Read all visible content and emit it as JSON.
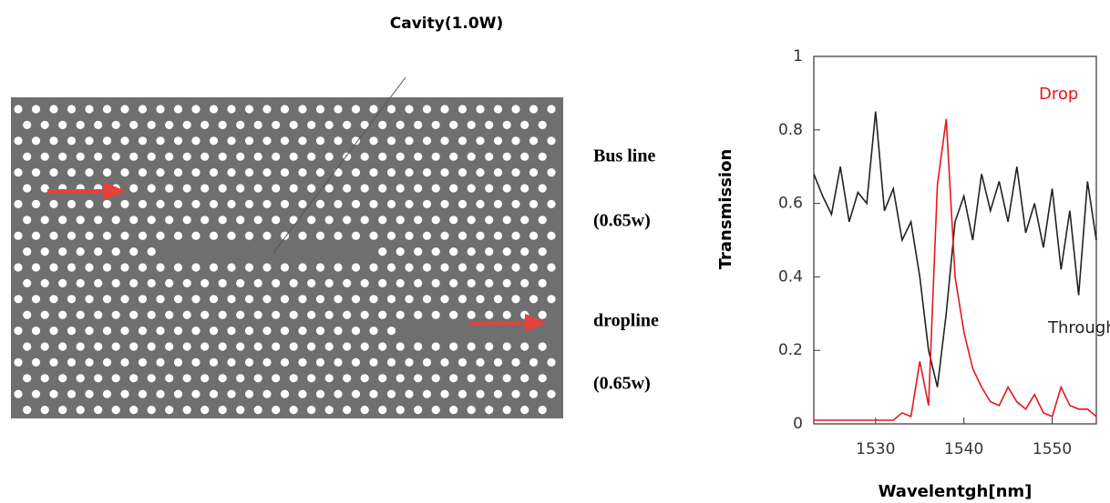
{
  "diagram": {
    "cavity_label": "Cavity(1.0W)",
    "bus_label": "Bus line",
    "bus_width": "(0.65w)",
    "drop_label": "dropline",
    "drop_width": "(0.65w)"
  },
  "chart_data": {
    "type": "line",
    "xlabel": "Wavelentgh[nm]",
    "ylabel": "Transmission",
    "x": [
      1523,
      1524,
      1525,
      1526,
      1527,
      1528,
      1529,
      1530,
      1531,
      1532,
      1533,
      1534,
      1535,
      1536,
      1537,
      1538,
      1539,
      1540,
      1541,
      1542,
      1543,
      1544,
      1545,
      1546,
      1547,
      1548,
      1549,
      1550,
      1551,
      1552,
      1553,
      1554,
      1555
    ],
    "series": [
      {
        "name": "Through",
        "color": "#222222",
        "values": [
          0.68,
          0.62,
          0.57,
          0.7,
          0.55,
          0.63,
          0.6,
          0.85,
          0.58,
          0.64,
          0.5,
          0.55,
          0.4,
          0.2,
          0.1,
          0.3,
          0.55,
          0.62,
          0.5,
          0.68,
          0.58,
          0.66,
          0.55,
          0.7,
          0.52,
          0.6,
          0.48,
          0.64,
          0.42,
          0.58,
          0.35,
          0.66,
          0.5
        ]
      },
      {
        "name": "Drop",
        "color": "#e8161b",
        "values": [
          0.01,
          0.01,
          0.01,
          0.01,
          0.01,
          0.01,
          0.01,
          0.01,
          0.01,
          0.01,
          0.03,
          0.02,
          0.17,
          0.05,
          0.65,
          0.83,
          0.4,
          0.25,
          0.15,
          0.1,
          0.06,
          0.05,
          0.1,
          0.06,
          0.04,
          0.08,
          0.03,
          0.02,
          0.1,
          0.05,
          0.04,
          0.04,
          0.02
        ]
      }
    ],
    "xlim": [
      1523,
      1555
    ],
    "ylim": [
      0,
      1
    ],
    "xticks": [
      1530,
      1540,
      1550
    ],
    "yticks": [
      0,
      0.2,
      0.4,
      0.6,
      0.8,
      1
    ]
  }
}
